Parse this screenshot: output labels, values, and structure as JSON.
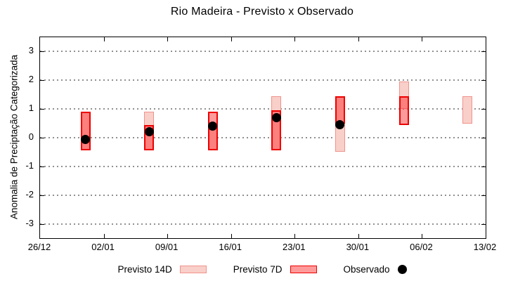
{
  "chart_data": {
    "type": "bar",
    "title": "Rio Madeira - Previsto x Observado",
    "xlabel": "",
    "ylabel": "Anomalia de Preciptação Categorizada",
    "ylim": [
      -3.5,
      3.5
    ],
    "yticks": [
      -3,
      -2,
      -1,
      0,
      1,
      2,
      3
    ],
    "grid": "horizontal-dashed",
    "x_axis_days": 49,
    "xtick_labels": [
      "26/12",
      "02/01",
      "09/01",
      "16/01",
      "23/01",
      "30/01",
      "06/02",
      "13/02"
    ],
    "legend_position": "bottom-center",
    "legend": [
      {
        "label": "Previsto 14D",
        "swatch": "light-box"
      },
      {
        "label": "Previsto 7D",
        "swatch": "red-box"
      },
      {
        "label": "Observado",
        "swatch": "black-dot"
      }
    ],
    "points": [
      {
        "date": "31/12",
        "day": 5,
        "previsto14": [
          -0.45,
          0.9
        ],
        "previsto7": [
          -0.45,
          0.9
        ],
        "observado": -0.05
      },
      {
        "date": "07/01",
        "day": 12,
        "previsto14": [
          -0.45,
          0.9
        ],
        "previsto7": [
          -0.45,
          0.45
        ],
        "observado": 0.2
      },
      {
        "date": "14/01",
        "day": 19,
        "previsto14": [
          -0.45,
          0.45
        ],
        "previsto7": [
          -0.45,
          0.9
        ],
        "observado": 0.4
      },
      {
        "date": "21/01",
        "day": 26,
        "previsto14": [
          -0.45,
          1.45
        ],
        "previsto7": [
          -0.45,
          0.95
        ],
        "observado": 0.7
      },
      {
        "date": "28/01",
        "day": 33,
        "previsto14": [
          -0.5,
          1.45
        ],
        "previsto7": [
          0.5,
          1.45
        ],
        "observado": 0.45
      },
      {
        "date": "04/02",
        "day": 40,
        "previsto14": [
          1.0,
          1.95
        ],
        "previsto7": [
          0.45,
          1.45
        ],
        "observado": null
      },
      {
        "date": "11/02",
        "day": 47,
        "previsto14": [
          0.5,
          1.45
        ],
        "previsto7": null,
        "observado": null
      }
    ],
    "colors": {
      "previsto14_fill": "#f9cfc9",
      "previsto14_border": "#f0938c",
      "previsto7_fill": "rgba(255,40,40,0.47)",
      "previsto7_border": "#ee0000",
      "observado": "#000000",
      "grid": "#909090"
    }
  }
}
